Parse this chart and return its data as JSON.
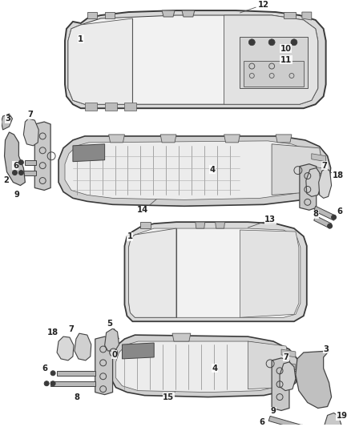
{
  "background_color": "#ffffff",
  "line_color": "#3a3a3a",
  "label_color": "#222222",
  "figsize": [
    4.38,
    5.33
  ],
  "dpi": 100,
  "label_fontsize": 7.2
}
